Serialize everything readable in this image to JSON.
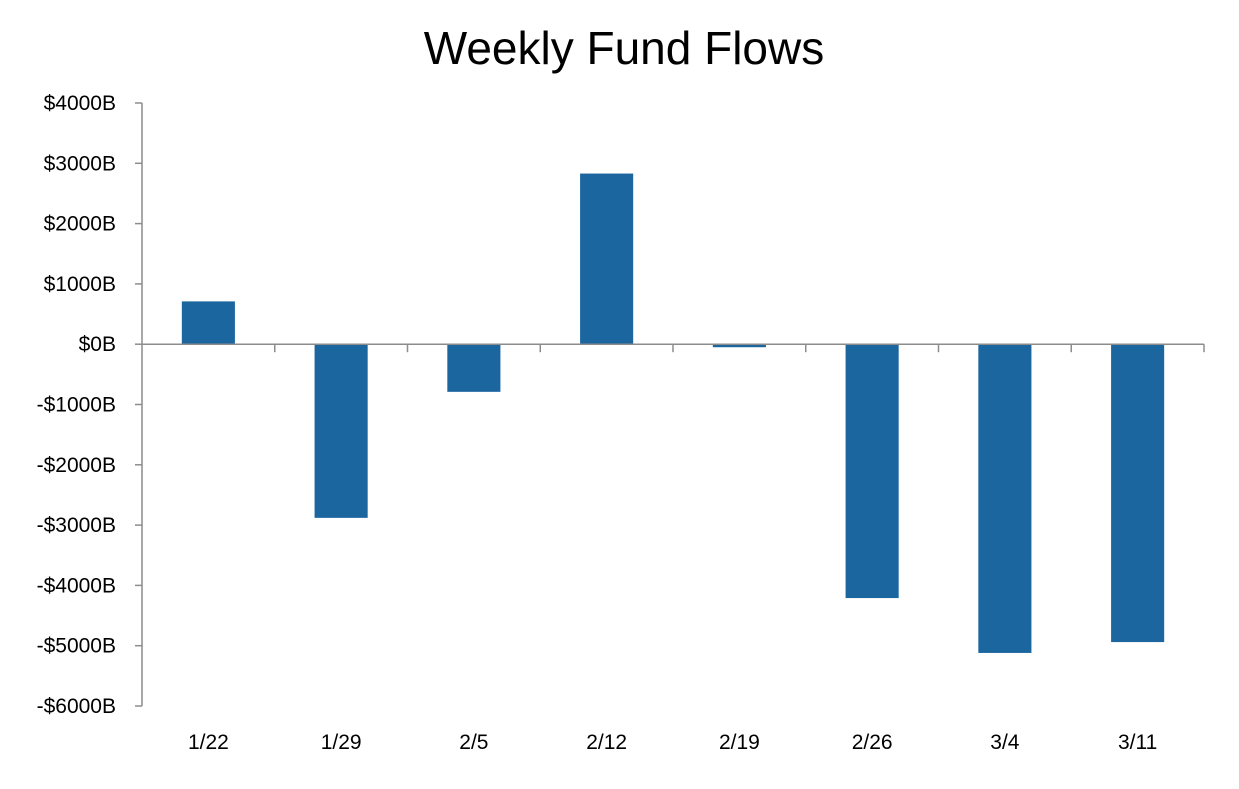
{
  "chart_data": {
    "type": "bar",
    "title": "Weekly Fund Flows",
    "xlabel": "",
    "ylabel": "",
    "categories": [
      "1/22",
      "1/29",
      "2/5",
      "2/12",
      "2/19",
      "2/26",
      "3/4",
      "3/11"
    ],
    "series": [
      {
        "values": [
          710,
          -2880,
          -790,
          2830,
          -50,
          -4210,
          -5120,
          -4940
        ]
      }
    ],
    "ylim": [
      -6000,
      4000
    ],
    "yticks": [
      4000,
      3000,
      2000,
      1000,
      0,
      -1000,
      -2000,
      -3000,
      -4000,
      -5000,
      -6000
    ],
    "ytick_labels": [
      "$4000B",
      "$3000B",
      "$2000B",
      "$1000B",
      "$0B",
      "-$1000B",
      "-$2000B",
      "-$3000B",
      "-$4000B",
      "-$5000B",
      "-$6000B"
    ],
    "grid": false,
    "legend": "none",
    "bar_color": "#1c66a0",
    "axis_color": "#8c8c8c"
  }
}
